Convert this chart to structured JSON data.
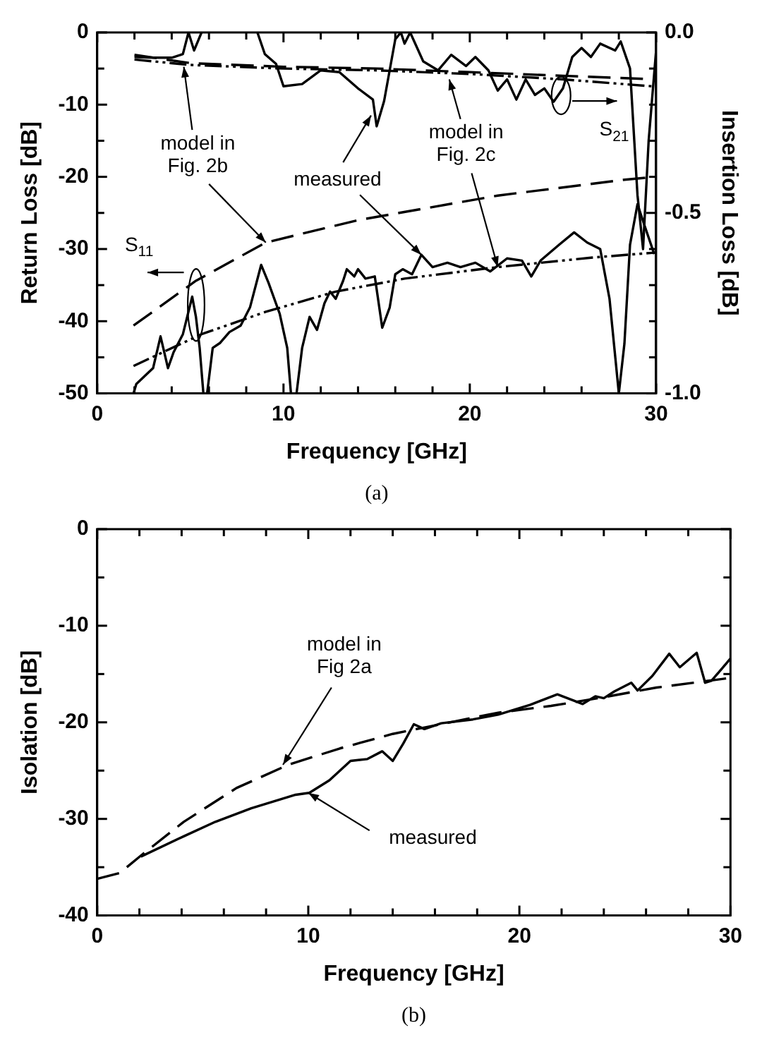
{
  "chart_data": [
    {
      "type": "line",
      "xlabel": "Frequency [GHz]",
      "ylabel": "Return Loss [dB]",
      "y2label": "Insertion Loss [dB]",
      "xlim": [
        0,
        30
      ],
      "xticks": [
        0,
        {
          "value": 2,
          "label": null
        },
        {
          "value": 4,
          "label": null
        },
        {
          "value": 6,
          "label": null
        },
        {
          "value": 8,
          "label": null
        },
        10,
        {
          "value": 12,
          "label": null
        },
        {
          "value": 14,
          "label": null
        },
        {
          "value": 16,
          "label": null
        },
        {
          "value": 18,
          "label": null
        },
        20,
        {
          "value": 22,
          "label": null
        },
        {
          "value": 24,
          "label": null
        },
        {
          "value": 26,
          "label": null
        },
        {
          "value": 28,
          "label": null
        },
        30
      ],
      "ylim": [
        -50,
        0
      ],
      "yticks": [
        -50,
        {
          "value": -45,
          "label": null
        },
        -40,
        {
          "value": -35,
          "label": null
        },
        -30,
        {
          "value": -25,
          "label": null
        },
        -20,
        {
          "value": -15,
          "label": null
        },
        -10,
        {
          "value": -5,
          "label": null
        },
        0
      ],
      "y2lim": [
        -1,
        0
      ],
      "y2ticks": [
        {
          "value": -1,
          "label": "-1.0"
        },
        {
          "value": -0.9,
          "label": null
        },
        {
          "value": -0.8,
          "label": null
        },
        {
          "value": -0.7,
          "label": null
        },
        {
          "value": -0.6,
          "label": null
        },
        {
          "value": -0.5,
          "label": "-0.5"
        },
        {
          "value": -0.4,
          "label": null
        },
        {
          "value": -0.3,
          "label": null
        },
        {
          "value": -0.2,
          "label": null
        },
        {
          "value": -0.1,
          "label": null
        },
        {
          "value": 0,
          "label": "0.0"
        }
      ],
      "grid": false,
      "legend": false,
      "series": [
        {
          "color": "#000000",
          "line_style": "solid",
          "x": [
            1.95,
            2.1,
            3.0,
            3.4,
            3.8,
            4.1,
            4.6,
            5.1,
            5.3,
            5.5,
            5.7,
            5.9,
            6.2,
            6.6,
            7.1,
            7.7,
            8.2,
            8.8,
            9.2,
            9.8,
            10.2,
            10.4,
            10.7,
            11.0,
            11.4,
            11.8,
            12.2,
            12.5,
            12.8,
            13.2,
            13.4,
            13.8,
            14.0,
            14.4,
            14.9,
            15.3,
            15.7,
            16.0,
            16.4,
            16.9,
            17.4,
            18.0,
            18.8,
            19.5,
            20.3,
            21.1,
            22.0,
            22.8,
            23.3,
            23.8,
            24.8,
            25.6,
            26.3,
            27.0,
            27.5,
            28.0,
            28.3,
            28.6,
            29.0,
            29.4,
            29.9
          ],
          "values": [
            -50,
            -48.7,
            -46.5,
            -42.1,
            -46.5,
            -44.3,
            -41.8,
            -36.6,
            -39.4,
            -43.7,
            -50,
            -50,
            -43.7,
            -43,
            -41.5,
            -40.6,
            -38.1,
            -32.2,
            -34.7,
            -39.0,
            -43.7,
            -50,
            -50,
            -43.7,
            -39.4,
            -41.2,
            -37.5,
            -35.9,
            -36.9,
            -34.4,
            -32.8,
            -33.8,
            -32.8,
            -34.1,
            -33.8,
            -40.9,
            -38.1,
            -33.5,
            -32.8,
            -33.5,
            -30.8,
            -32.5,
            -31.9,
            -32.5,
            -31.9,
            -33.1,
            -31.3,
            -31.6,
            -33.8,
            -31.6,
            -29.4,
            -27.7,
            -29.1,
            -30.0,
            -36.9,
            -50,
            -43.1,
            -29.4,
            -23.8,
            -26.9,
            -30.7
          ]
        },
        {
          "color": "#000000",
          "line_style": "dashed",
          "x": [
            1.95,
            5.3,
            9.05,
            14.0,
            21.5,
            28.3,
            30
          ],
          "values": [
            -40.6,
            -34.4,
            -29.1,
            -26.0,
            -22.6,
            -20.4,
            -20.0
          ]
        },
        {
          "color": "#000000",
          "line_style": "dotted",
          "x": [
            1.95,
            5.6,
            9.05,
            12.8,
            16.5,
            21.5,
            26.5,
            29.9
          ],
          "values": [
            -46.2,
            -41.8,
            -38.7,
            -35.9,
            -34.1,
            -32.5,
            -31.2,
            -30.5
          ]
        },
        {
          "color": "#000000",
          "line_style": "solid",
          "axis": "y2",
          "x": [
            2,
            3,
            4,
            4.6,
            4.9,
            5.2,
            5.6,
            5.9,
            8.6,
            9.0,
            9.6,
            10,
            11,
            12,
            13,
            14,
            14.8,
            15,
            15.4,
            16,
            16.3,
            16.5,
            16.8,
            17.5,
            18.3,
            19,
            19.8,
            20.3,
            21,
            21.5,
            22,
            22.5,
            23,
            23.5,
            24,
            24.5,
            25,
            25.5,
            26,
            26.5,
            27,
            27.8,
            28.1,
            28.6,
            29.0,
            29.3,
            29.6,
            30
          ],
          "values": [
            -0.068,
            -0.07,
            -0.07,
            -0.06,
            0.0,
            -0.05,
            0.0,
            null,
            0.0,
            -0.06,
            -0.087,
            -0.149,
            -0.143,
            -0.105,
            -0.11,
            -0.155,
            -0.186,
            -0.26,
            -0.19,
            -0.019,
            0.0,
            -0.031,
            0.0,
            -0.08,
            -0.105,
            -0.062,
            -0.093,
            -0.068,
            -0.105,
            -0.161,
            -0.13,
            -0.186,
            -0.13,
            -0.173,
            -0.155,
            -0.192,
            -0.155,
            -0.068,
            -0.043,
            -0.068,
            -0.031,
            -0.05,
            -0.025,
            -0.1,
            -0.45,
            -0.6,
            -0.3,
            -0.05
          ]
        },
        {
          "color": "#000000",
          "line_style": "dashed",
          "axis": "y2",
          "x": [
            2,
            5,
            10,
            15,
            20,
            25,
            30
          ],
          "values": [
            -0.062,
            -0.085,
            -0.095,
            -0.1,
            -0.11,
            -0.12,
            -0.13
          ]
        },
        {
          "color": "#000000",
          "line_style": "dotted",
          "axis": "y2",
          "x": [
            2,
            5,
            10,
            15,
            20,
            25,
            30
          ],
          "values": [
            -0.075,
            -0.09,
            -0.1,
            -0.105,
            -0.115,
            -0.13,
            -0.15
          ]
        }
      ],
      "annotations": [
        {
          "text": "model in Fig. 2b",
          "x": 9.05,
          "y": -29.1
        },
        {
          "text": "measured",
          "x": 17.4,
          "y": -30.8
        },
        {
          "text": "model in Fig. 2c",
          "x": 21.5,
          "y": -32.5
        },
        "S$_{11}$",
        "S$_{21}$",
        "(a)"
      ]
    },
    {
      "type": "line",
      "xlabel": "Frequency [GHz]",
      "ylabel": "Isolation [dB]",
      "xlim": [
        0,
        30
      ],
      "xticks": [
        0,
        {
          "value": 2,
          "label": null
        },
        {
          "value": 4,
          "label": null
        },
        {
          "value": 6,
          "label": null
        },
        {
          "value": 8,
          "label": null
        },
        10,
        {
          "value": 12,
          "label": null
        },
        {
          "value": 14,
          "label": null
        },
        {
          "value": 16,
          "label": null
        },
        {
          "value": 18,
          "label": null
        },
        20,
        {
          "value": 22,
          "label": null
        },
        {
          "value": 24,
          "label": null
        },
        {
          "value": 26,
          "label": null
        },
        {
          "value": 28,
          "label": null
        },
        30
      ],
      "ylim": [
        -40,
        0
      ],
      "yticks": [
        -40,
        {
          "value": -35,
          "label": null
        },
        -30,
        {
          "value": -25,
          "label": null
        },
        -20,
        {
          "value": -15,
          "label": null
        },
        -10,
        {
          "value": -5,
          "label": null
        },
        0
      ],
      "grid": false,
      "legend": false,
      "series": [
        {
          "color": "#000000",
          "line_style": "solid",
          "x": [
            2.07,
            4.1,
            5.6,
            7.3,
            9.4,
            10.05,
            11.0,
            12.0,
            12.8,
            13.5,
            14.0,
            14.5,
            15.0,
            15.5,
            16.3,
            17.8,
            19.0,
            20.5,
            21.8,
            23.0,
            23.6,
            24.0,
            24.5,
            25.3,
            25.6,
            26.3,
            27.1,
            27.6,
            28.4,
            28.8,
            29.1,
            30
          ],
          "values": [
            -33.9,
            -31.8,
            -30.3,
            -28.9,
            -27.5,
            -27.3,
            -26.0,
            -24.0,
            -23.8,
            -23.0,
            -24.0,
            -22.2,
            -20.2,
            -20.7,
            -20.1,
            -19.7,
            -19.2,
            -18.2,
            -17.1,
            -18.1,
            -17.3,
            -17.5,
            -16.8,
            -15.9,
            -16.7,
            -15.2,
            -12.9,
            -14.3,
            -12.8,
            -15.9,
            -15.7,
            -13.4
          ]
        },
        {
          "color": "#000000",
          "line_style": "dashed",
          "x": [
            0,
            1.07,
            2.07,
            4.1,
            6.6,
            9.05,
            11.5,
            14.0,
            16.5,
            19.0,
            21.5,
            24.0,
            26.5,
            30
          ],
          "values": [
            -36.2,
            -35.6,
            -33.8,
            -30.3,
            -26.8,
            -24.4,
            -22.7,
            -21.2,
            -20.1,
            -19.0,
            -18.3,
            -17.4,
            -16.4,
            -15.4
          ]
        }
      ],
      "annotations": [
        {
          "text": "model in Fig 2a",
          "x": 8.8,
          "y": -24.4
        },
        {
          "text": "measured",
          "x": 10,
          "y": -27.3
        },
        "(b)"
      ]
    }
  ]
}
